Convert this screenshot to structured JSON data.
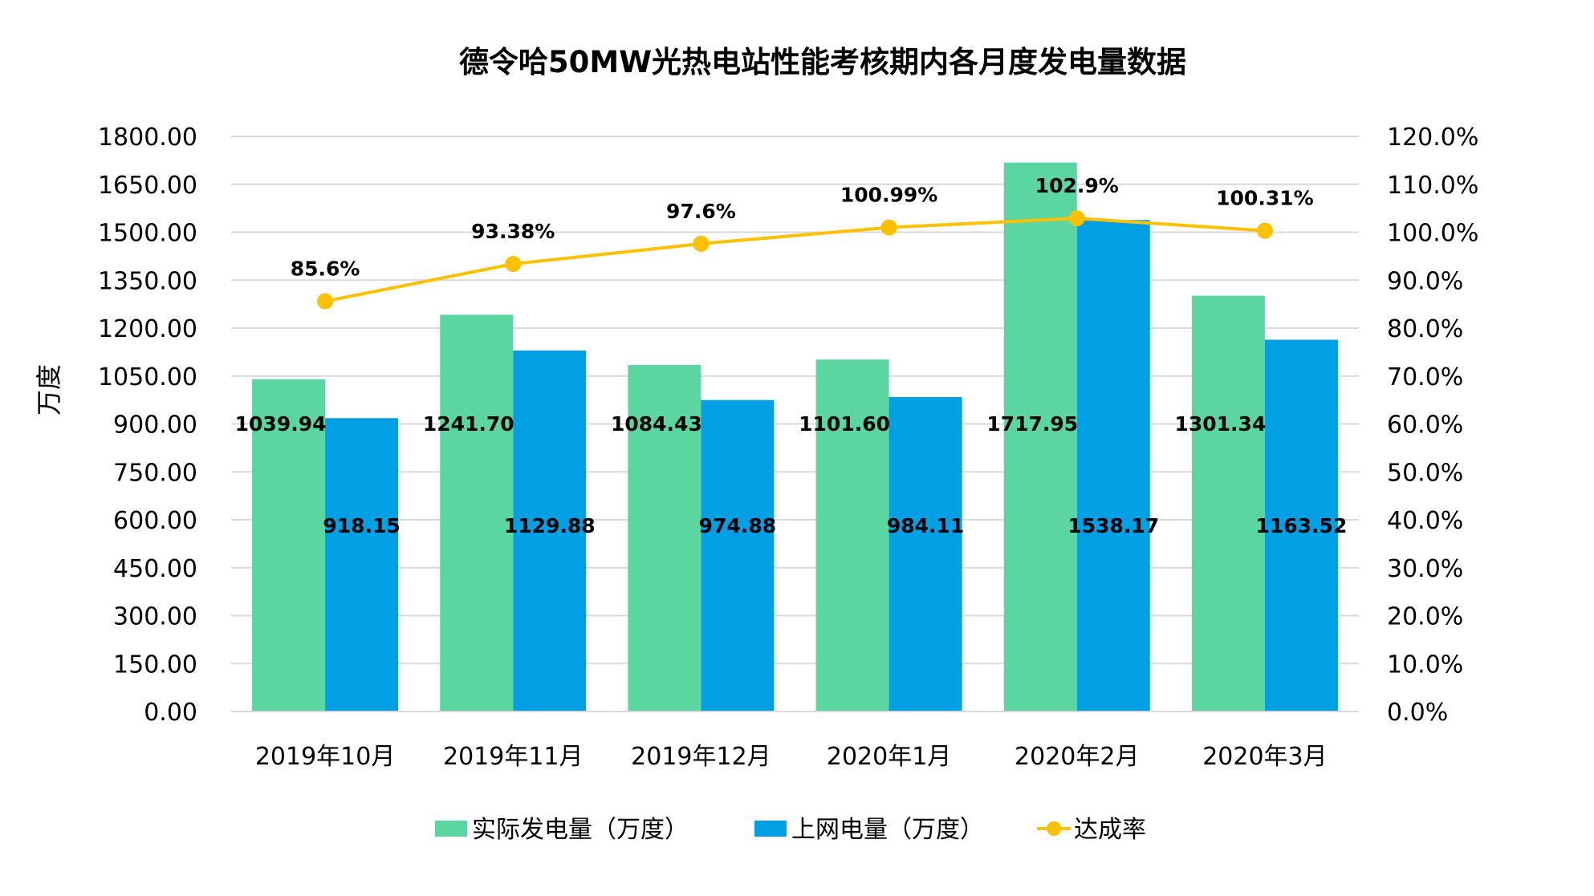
{
  "chart_data": {
    "type": "bar",
    "title": "德令哈50MW光热电站性能考核期内各月度发电量数据",
    "xlabel": "",
    "ylabel": "万度",
    "y2label": "",
    "categories": [
      "2019年10月",
      "2019年11月",
      "2019年12月",
      "2020年1月",
      "2020年2月",
      "2020年3月"
    ],
    "ylim": [
      0,
      1800
    ],
    "y2lim": [
      0,
      120
    ],
    "yticks": [
      "0.00",
      "150.00",
      "300.00",
      "450.00",
      "600.00",
      "750.00",
      "900.00",
      "1050.00",
      "1200.00",
      "1350.00",
      "1500.00",
      "1650.00",
      "1800.00"
    ],
    "y2ticks": [
      "0.0%",
      "10.0%",
      "20.0%",
      "30.0%",
      "40.0%",
      "50.0%",
      "60.0%",
      "70.0%",
      "80.0%",
      "90.0%",
      "100.0%",
      "110.0%",
      "120.0%"
    ],
    "grid": true,
    "legend_position": "bottom",
    "series": [
      {
        "name": "实际发电量（万度）",
        "type": "bar",
        "axis": "left",
        "color": "#5CD6A0",
        "values": [
          1039.94,
          1241.7,
          1084.43,
          1101.6,
          1717.95,
          1301.34
        ],
        "labels": [
          "1039.94",
          "1241.70",
          "1084.43",
          "1101.60",
          "1717.95",
          "1301.34"
        ]
      },
      {
        "name": "上网电量（万度）",
        "type": "bar",
        "axis": "left",
        "color": "#019FE3",
        "values": [
          918.15,
          1129.88,
          974.88,
          984.11,
          1538.17,
          1163.52
        ],
        "labels": [
          "918.15",
          "1129.88",
          "974.88",
          "984.11",
          "1538.17",
          "1163.52"
        ]
      },
      {
        "name": "达成率",
        "type": "line",
        "axis": "right",
        "color": "#FFC000",
        "values": [
          85.6,
          93.38,
          97.6,
          100.99,
          102.9,
          100.31
        ],
        "labels": [
          "85.6%",
          "93.38%",
          "97.6%",
          "100.99%",
          "102.9%",
          "100.31%"
        ]
      }
    ]
  }
}
